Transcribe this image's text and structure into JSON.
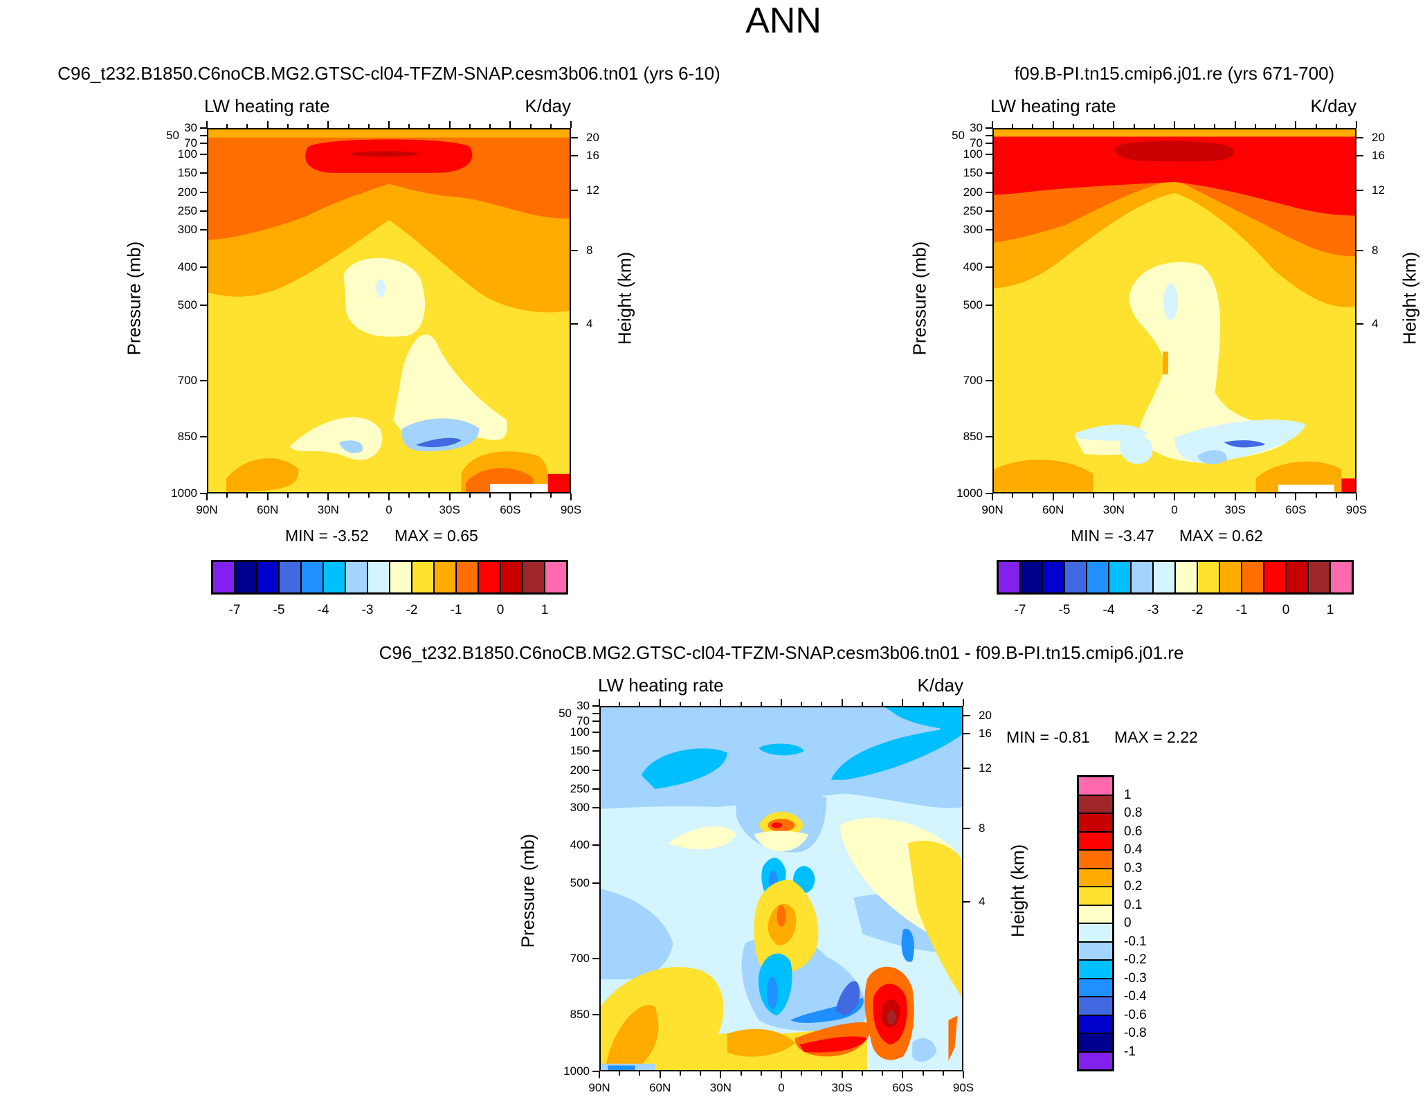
{
  "title": "ANN",
  "colors": {
    "main": [
      "#8221ee",
      "#00008e",
      "#0000cd",
      "#4169e1",
      "#1e90ff",
      "#00bfff",
      "#a3d3ff",
      "#d4f4ff",
      "#ffffc8",
      "#ffe12f",
      "#ffab00",
      "#ff6e00",
      "#ff0000",
      "#c80000",
      "#9e2628",
      "#ff6aae"
    ],
    "diff": [
      "#ff6aae",
      "#9e2628",
      "#c80000",
      "#ff0000",
      "#ff6e00",
      "#ffab00",
      "#ffe12f",
      "#ffffc8",
      "#d4f4ff",
      "#a3d3ff",
      "#00bfff",
      "#1e90ff",
      "#4169e1",
      "#0000cd",
      "#00008e",
      "#8221ee"
    ]
  },
  "chart_data": [
    {
      "type": "heatmap",
      "panel": "top-left",
      "title": "C96_t232.B1850.C6noCB.MG2.GTSC-cl04-TFZM-SNAP.cesm3b06.tn01 (yrs 6-10)",
      "left_label": "LW heating rate",
      "right_label": "K/day",
      "ylabel": "Pressure (mb)",
      "ylabel_right": "Height (km)",
      "x_ticks": [
        "90N",
        "60N",
        "30N",
        "0",
        "30S",
        "60S",
        "90S"
      ],
      "y_ticks": [
        30,
        50,
        70,
        100,
        150,
        200,
        250,
        300,
        400,
        500,
        700,
        850,
        1000
      ],
      "height_ticks": [
        20,
        16,
        12,
        8,
        4
      ],
      "ylim": [
        1000,
        30
      ],
      "min_label": "MIN =  -3.52",
      "max_label": "MAX =   0.65",
      "min": -3.52,
      "max": 0.65,
      "colorbar_labels": [
        "-7",
        "-5",
        "-4",
        "-3",
        "-2",
        "-1",
        "0",
        "1"
      ]
    },
    {
      "type": "heatmap",
      "panel": "top-right",
      "title": "f09.B-PI.tn15.cmip6.j01.re (yrs 671-700)",
      "left_label": "LW heating rate",
      "right_label": "K/day",
      "ylabel": "Pressure (mb)",
      "ylabel_right": "Height (km)",
      "x_ticks": [
        "90N",
        "60N",
        "30N",
        "0",
        "30S",
        "60S",
        "90S"
      ],
      "y_ticks": [
        30,
        50,
        70,
        100,
        150,
        200,
        250,
        300,
        400,
        500,
        700,
        850,
        1000
      ],
      "height_ticks": [
        20,
        16,
        12,
        8,
        4
      ],
      "ylim": [
        1000,
        30
      ],
      "min_label": "MIN =  -3.47",
      "max_label": "MAX =   0.62",
      "min": -3.47,
      "max": 0.62,
      "colorbar_labels": [
        "-7",
        "-5",
        "-4",
        "-3",
        "-2",
        "-1",
        "0",
        "1"
      ]
    },
    {
      "type": "heatmap",
      "panel": "bottom",
      "title": "C96_t232.B1850.C6noCB.MG2.GTSC-cl04-TFZM-SNAP.cesm3b06.tn01 - f09.B-PI.tn15.cmip6.j01.re",
      "left_label": "LW heating rate",
      "right_label": "K/day",
      "ylabel": "Pressure (mb)",
      "ylabel_right": "Height (km)",
      "x_ticks": [
        "90N",
        "60N",
        "30N",
        "0",
        "30S",
        "60S",
        "90S"
      ],
      "y_ticks": [
        30,
        50,
        70,
        100,
        150,
        200,
        250,
        300,
        400,
        500,
        700,
        850,
        1000
      ],
      "height_ticks": [
        20,
        16,
        12,
        8,
        4
      ],
      "ylim": [
        1000,
        30
      ],
      "min_label": "MIN =  -0.81",
      "max_label": "MAX =   2.22",
      "min": -0.81,
      "max": 2.22,
      "colorbar_labels": [
        "1",
        "0.8",
        "0.6",
        "0.4",
        "0.3",
        "0.2",
        "0.1",
        "0",
        "-0.1",
        "-0.2",
        "-0.3",
        "-0.4",
        "-0.6",
        "-0.8",
        "-1"
      ]
    }
  ]
}
